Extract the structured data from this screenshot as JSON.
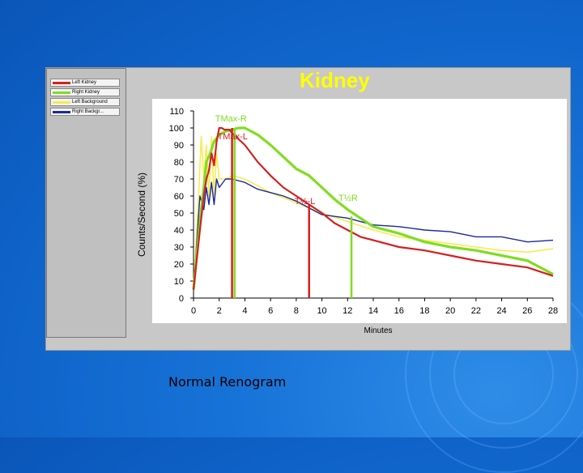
{
  "slide": {
    "caption": "Normal Renogram",
    "background_color": "#1570d6"
  },
  "chart_data": {
    "type": "line",
    "title": "Kidney",
    "title_color": "#ffff00",
    "xlabel": "Minutes",
    "ylabel": "Counts/Second (%)",
    "xlim": [
      0,
      28
    ],
    "ylim": [
      0,
      110
    ],
    "x_ticks": [
      "0",
      "2",
      "4",
      "6",
      "8",
      "10",
      "12",
      "14",
      "16",
      "18",
      "20",
      "22",
      "24",
      "26",
      "28"
    ],
    "y_ticks": [
      "0",
      "10",
      "20",
      "30",
      "40",
      "50",
      "60",
      "70",
      "80",
      "90",
      "100",
      "110"
    ],
    "grid": false,
    "legend_position": "left",
    "series": [
      {
        "name": "Left Kidney",
        "color": "#d42020",
        "x": [
          0,
          0.5,
          0.8,
          1.0,
          1.2,
          1.4,
          1.6,
          1.8,
          2.0,
          2.2,
          2.4,
          2.8,
          3.0,
          4,
          5,
          6,
          7,
          8,
          9,
          10,
          11,
          12,
          13,
          14,
          16,
          18,
          20,
          22,
          24,
          26,
          28
        ],
        "y": [
          5,
          40,
          60,
          70,
          75,
          85,
          78,
          92,
          100,
          100,
          99,
          99,
          97,
          90,
          80,
          72,
          65,
          60,
          55,
          50,
          44,
          40,
          36,
          34,
          30,
          28,
          25,
          22,
          20,
          18,
          13
        ]
      },
      {
        "name": "Right Kidney",
        "color": "#80dd20",
        "x": [
          0,
          0.5,
          0.8,
          1.0,
          1.3,
          1.6,
          2.0,
          2.5,
          3.0,
          3.5,
          4,
          5,
          6,
          7,
          8,
          9,
          10,
          11,
          12,
          13,
          14,
          16,
          18,
          20,
          22,
          24,
          26,
          28
        ],
        "y": [
          5,
          45,
          65,
          80,
          85,
          92,
          96,
          98,
          99,
          100,
          100,
          96,
          90,
          83,
          76,
          72,
          65,
          58,
          52,
          47,
          42,
          38,
          33,
          30,
          28,
          25,
          22,
          14
        ]
      },
      {
        "name": "Left Background",
        "color": "#f5ec50",
        "x": [
          0,
          0.4,
          0.6,
          0.8,
          1.0,
          1.2,
          1.4,
          1.6,
          1.8,
          2.0,
          2.5,
          3,
          4,
          5,
          6,
          7,
          8,
          9,
          10,
          12,
          14,
          16,
          18,
          20,
          22,
          24,
          26,
          28
        ],
        "y": [
          5,
          60,
          95,
          70,
          90,
          60,
          95,
          60,
          85,
          70,
          70,
          72,
          70,
          66,
          62,
          59,
          56,
          53,
          50,
          45,
          40,
          36,
          34,
          32,
          30,
          28,
          27,
          29
        ]
      },
      {
        "name": "Right Backgr...",
        "color": "#1a2a9a",
        "x": [
          0,
          0.5,
          0.8,
          1.0,
          1.2,
          1.4,
          1.6,
          1.8,
          2.0,
          2.5,
          3,
          4,
          5,
          6,
          7,
          8,
          9,
          10,
          12,
          14,
          16,
          18,
          20,
          22,
          24,
          26,
          28
        ],
        "y": [
          5,
          60,
          52,
          65,
          55,
          68,
          55,
          70,
          65,
          70,
          70,
          68,
          64,
          62,
          60,
          57,
          53,
          49,
          47,
          43,
          42,
          40,
          39,
          36,
          36,
          33,
          34
        ]
      }
    ],
    "markers": [
      {
        "label": "TMax-R",
        "x": 3.2,
        "color": "#80dd20"
      },
      {
        "label": "TMax-L",
        "x": 3.0,
        "color": "#d42020"
      },
      {
        "label": "T½-L",
        "x": 9.0,
        "color": "#d42020"
      },
      {
        "label": "T½R",
        "x": 12.3,
        "color": "#80dd20"
      }
    ]
  }
}
